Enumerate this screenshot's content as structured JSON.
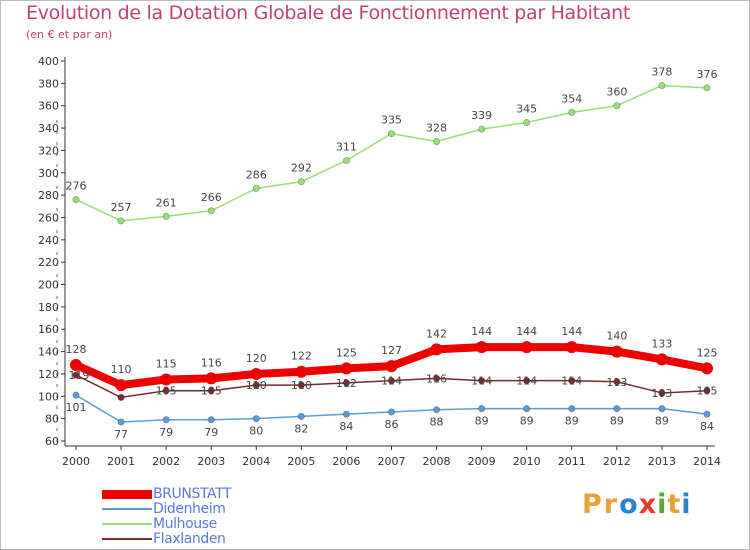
{
  "title": "Evolution de la Dotation Globale de Fonctionnement par Habitant",
  "subtitle": "(en € et par an)",
  "logo": {
    "letters": [
      "P",
      "r",
      "o",
      "x",
      "i",
      "t",
      "i"
    ],
    "colors": [
      "#e9a23b",
      "#e9a23b",
      "#2f7fd6",
      "#e23d2f",
      "#5aa839",
      "#e9a23b",
      "#2f7fd6"
    ]
  },
  "chart_data": {
    "type": "line",
    "x": [
      "2000",
      "2001",
      "2002",
      "2003",
      "2004",
      "2005",
      "2006",
      "2007",
      "2008",
      "2009",
      "2010",
      "2011",
      "2012",
      "2013",
      "2014"
    ],
    "ylim": [
      60,
      400
    ],
    "yticks": [
      60,
      80,
      100,
      120,
      140,
      160,
      180,
      200,
      220,
      240,
      260,
      280,
      300,
      320,
      340,
      360,
      380,
      400
    ],
    "grid": false,
    "legend_position": "bottom-left",
    "series": [
      {
        "name": "BRUNSTATT",
        "values": [
          128,
          110,
          115,
          116,
          120,
          122,
          125,
          127,
          142,
          144,
          144,
          144,
          140,
          133,
          125
        ],
        "color": "#ee0000"
      },
      {
        "name": "Didenheim",
        "values": [
          101,
          77,
          79,
          79,
          80,
          82,
          84,
          86,
          88,
          89,
          89,
          89,
          89,
          89,
          84
        ],
        "color": "#5b9bd5"
      },
      {
        "name": "Mulhouse",
        "values": [
          276,
          257,
          261,
          266,
          286,
          292,
          311,
          335,
          328,
          339,
          345,
          354,
          360,
          378,
          376
        ],
        "color": "#99dd77"
      },
      {
        "name": "Flaxlanden",
        "values": [
          119,
          99,
          105,
          105,
          110,
          110,
          112,
          114,
          116,
          114,
          114,
          114,
          113,
          103,
          105
        ],
        "color": "#7a2a2a"
      }
    ],
    "data_labels": [
      {
        "series": "Mulhouse",
        "labels": [
          "276",
          "257",
          "261",
          "266",
          "286",
          "292",
          "311",
          "335",
          "328",
          "339",
          "345",
          "354",
          "360",
          "378",
          "376"
        ]
      },
      {
        "series": "BRUNSTATT",
        "labels": [
          "128",
          "110",
          "115",
          "116",
          "120",
          "122",
          "125",
          "127",
          "142",
          "144",
          "144",
          "144",
          "140",
          "133",
          "125"
        ]
      },
      {
        "series": "Didenheim",
        "labels": [
          "101",
          "77",
          "79",
          "79",
          "80",
          "82",
          "84",
          "86",
          "88",
          "89",
          "89",
          "89",
          "89",
          "89",
          "84"
        ]
      },
      {
        "series": "Flaxlanden",
        "labels": [
          "119",
          "",
          "105",
          "105",
          "110",
          "110",
          "112",
          "114",
          "116",
          "114",
          "114",
          "114",
          "113",
          "103",
          "105"
        ]
      }
    ]
  }
}
